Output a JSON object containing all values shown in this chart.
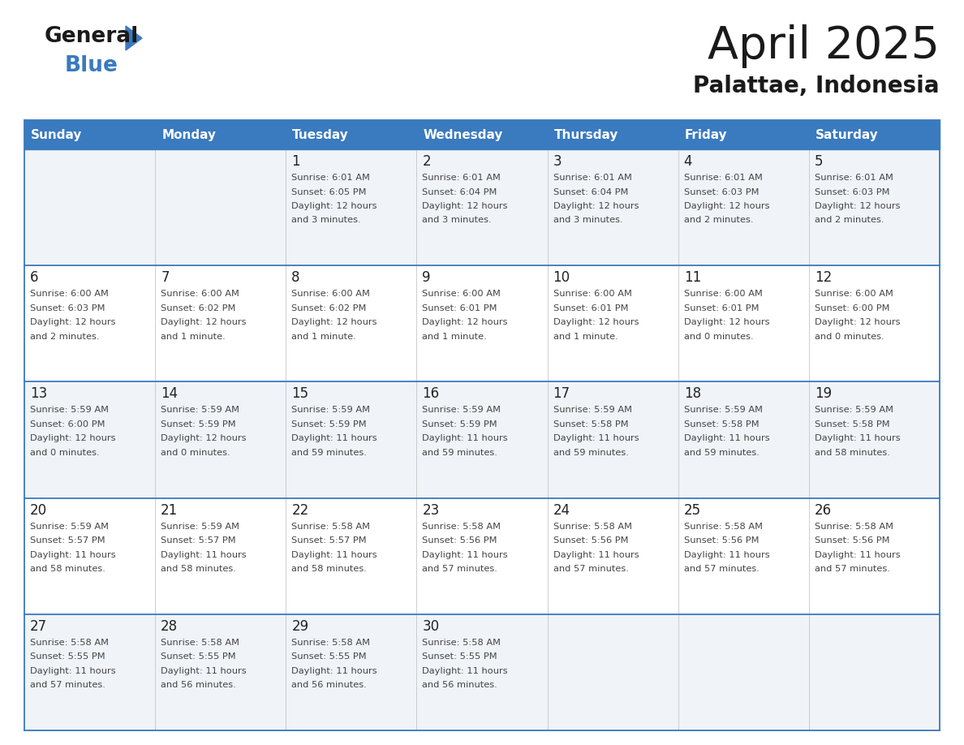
{
  "title": "April 2025",
  "subtitle": "Palattae, Indonesia",
  "header_bg": "#3a7abf",
  "header_text": "#ffffff",
  "row_bg_odd": "#f0f4f8",
  "row_bg_even": "#ffffff",
  "border_color": "#3a7abf",
  "cell_divider": "#bbbbbb",
  "day_names": [
    "Sunday",
    "Monday",
    "Tuesday",
    "Wednesday",
    "Thursday",
    "Friday",
    "Saturday"
  ],
  "title_color": "#1a1a1a",
  "subtitle_color": "#1a1a1a",
  "day_num_color": "#222222",
  "cell_text_color": "#444444",
  "logo_general_color": "#1a1a1a",
  "logo_blue_color": "#3a7abf",
  "calendar": [
    [
      {
        "day": null,
        "lines": []
      },
      {
        "day": null,
        "lines": []
      },
      {
        "day": "1",
        "lines": [
          "Sunrise: 6:01 AM",
          "Sunset: 6:05 PM",
          "Daylight: 12 hours",
          "and 3 minutes."
        ]
      },
      {
        "day": "2",
        "lines": [
          "Sunrise: 6:01 AM",
          "Sunset: 6:04 PM",
          "Daylight: 12 hours",
          "and 3 minutes."
        ]
      },
      {
        "day": "3",
        "lines": [
          "Sunrise: 6:01 AM",
          "Sunset: 6:04 PM",
          "Daylight: 12 hours",
          "and 3 minutes."
        ]
      },
      {
        "day": "4",
        "lines": [
          "Sunrise: 6:01 AM",
          "Sunset: 6:03 PM",
          "Daylight: 12 hours",
          "and 2 minutes."
        ]
      },
      {
        "day": "5",
        "lines": [
          "Sunrise: 6:01 AM",
          "Sunset: 6:03 PM",
          "Daylight: 12 hours",
          "and 2 minutes."
        ]
      }
    ],
    [
      {
        "day": "6",
        "lines": [
          "Sunrise: 6:00 AM",
          "Sunset: 6:03 PM",
          "Daylight: 12 hours",
          "and 2 minutes."
        ]
      },
      {
        "day": "7",
        "lines": [
          "Sunrise: 6:00 AM",
          "Sunset: 6:02 PM",
          "Daylight: 12 hours",
          "and 1 minute."
        ]
      },
      {
        "day": "8",
        "lines": [
          "Sunrise: 6:00 AM",
          "Sunset: 6:02 PM",
          "Daylight: 12 hours",
          "and 1 minute."
        ]
      },
      {
        "day": "9",
        "lines": [
          "Sunrise: 6:00 AM",
          "Sunset: 6:01 PM",
          "Daylight: 12 hours",
          "and 1 minute."
        ]
      },
      {
        "day": "10",
        "lines": [
          "Sunrise: 6:00 AM",
          "Sunset: 6:01 PM",
          "Daylight: 12 hours",
          "and 1 minute."
        ]
      },
      {
        "day": "11",
        "lines": [
          "Sunrise: 6:00 AM",
          "Sunset: 6:01 PM",
          "Daylight: 12 hours",
          "and 0 minutes."
        ]
      },
      {
        "day": "12",
        "lines": [
          "Sunrise: 6:00 AM",
          "Sunset: 6:00 PM",
          "Daylight: 12 hours",
          "and 0 minutes."
        ]
      }
    ],
    [
      {
        "day": "13",
        "lines": [
          "Sunrise: 5:59 AM",
          "Sunset: 6:00 PM",
          "Daylight: 12 hours",
          "and 0 minutes."
        ]
      },
      {
        "day": "14",
        "lines": [
          "Sunrise: 5:59 AM",
          "Sunset: 5:59 PM",
          "Daylight: 12 hours",
          "and 0 minutes."
        ]
      },
      {
        "day": "15",
        "lines": [
          "Sunrise: 5:59 AM",
          "Sunset: 5:59 PM",
          "Daylight: 11 hours",
          "and 59 minutes."
        ]
      },
      {
        "day": "16",
        "lines": [
          "Sunrise: 5:59 AM",
          "Sunset: 5:59 PM",
          "Daylight: 11 hours",
          "and 59 minutes."
        ]
      },
      {
        "day": "17",
        "lines": [
          "Sunrise: 5:59 AM",
          "Sunset: 5:58 PM",
          "Daylight: 11 hours",
          "and 59 minutes."
        ]
      },
      {
        "day": "18",
        "lines": [
          "Sunrise: 5:59 AM",
          "Sunset: 5:58 PM",
          "Daylight: 11 hours",
          "and 59 minutes."
        ]
      },
      {
        "day": "19",
        "lines": [
          "Sunrise: 5:59 AM",
          "Sunset: 5:58 PM",
          "Daylight: 11 hours",
          "and 58 minutes."
        ]
      }
    ],
    [
      {
        "day": "20",
        "lines": [
          "Sunrise: 5:59 AM",
          "Sunset: 5:57 PM",
          "Daylight: 11 hours",
          "and 58 minutes."
        ]
      },
      {
        "day": "21",
        "lines": [
          "Sunrise: 5:59 AM",
          "Sunset: 5:57 PM",
          "Daylight: 11 hours",
          "and 58 minutes."
        ]
      },
      {
        "day": "22",
        "lines": [
          "Sunrise: 5:58 AM",
          "Sunset: 5:57 PM",
          "Daylight: 11 hours",
          "and 58 minutes."
        ]
      },
      {
        "day": "23",
        "lines": [
          "Sunrise: 5:58 AM",
          "Sunset: 5:56 PM",
          "Daylight: 11 hours",
          "and 57 minutes."
        ]
      },
      {
        "day": "24",
        "lines": [
          "Sunrise: 5:58 AM",
          "Sunset: 5:56 PM",
          "Daylight: 11 hours",
          "and 57 minutes."
        ]
      },
      {
        "day": "25",
        "lines": [
          "Sunrise: 5:58 AM",
          "Sunset: 5:56 PM",
          "Daylight: 11 hours",
          "and 57 minutes."
        ]
      },
      {
        "day": "26",
        "lines": [
          "Sunrise: 5:58 AM",
          "Sunset: 5:56 PM",
          "Daylight: 11 hours",
          "and 57 minutes."
        ]
      }
    ],
    [
      {
        "day": "27",
        "lines": [
          "Sunrise: 5:58 AM",
          "Sunset: 5:55 PM",
          "Daylight: 11 hours",
          "and 57 minutes."
        ]
      },
      {
        "day": "28",
        "lines": [
          "Sunrise: 5:58 AM",
          "Sunset: 5:55 PM",
          "Daylight: 11 hours",
          "and 56 minutes."
        ]
      },
      {
        "day": "29",
        "lines": [
          "Sunrise: 5:58 AM",
          "Sunset: 5:55 PM",
          "Daylight: 11 hours",
          "and 56 minutes."
        ]
      },
      {
        "day": "30",
        "lines": [
          "Sunrise: 5:58 AM",
          "Sunset: 5:55 PM",
          "Daylight: 11 hours",
          "and 56 minutes."
        ]
      },
      {
        "day": null,
        "lines": []
      },
      {
        "day": null,
        "lines": []
      },
      {
        "day": null,
        "lines": []
      }
    ]
  ]
}
